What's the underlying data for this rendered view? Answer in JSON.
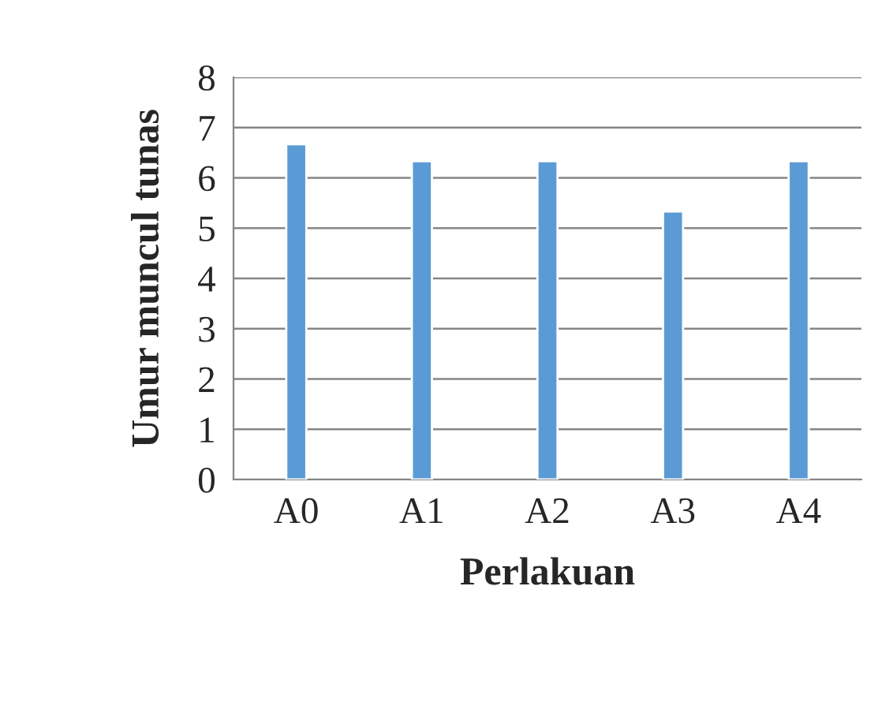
{
  "chart_data": {
    "type": "bar",
    "xlabel": "Perlakuan",
    "ylabel": "Umur muncul tunas",
    "categories": [
      "A0",
      "A1",
      "A2",
      "A3",
      "A4"
    ],
    "values": [
      6.67,
      6.33,
      6.33,
      5.33,
      6.33
    ],
    "color": "#5b9bd5",
    "ylim": [
      0,
      8
    ],
    "yticks": [
      0,
      1,
      2,
      3,
      4,
      5,
      6,
      7,
      8
    ],
    "grid": "y",
    "legend": false
  }
}
